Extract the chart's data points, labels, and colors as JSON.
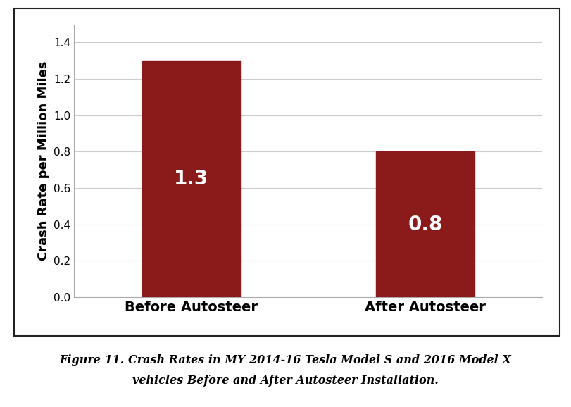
{
  "categories": [
    "Before Autosteer",
    "After Autosteer"
  ],
  "values": [
    1.3,
    0.8
  ],
  "bar_color": "#8B1A1A",
  "bar_labels": [
    "1.3",
    "0.8"
  ],
  "bar_label_color": "#ffffff",
  "bar_label_fontsize": 20,
  "ylabel": "Crash Rate per Million Miles",
  "ylabel_fontsize": 13,
  "xtick_fontsize": 14,
  "ytick_fontsize": 11,
  "ylim": [
    0,
    1.5
  ],
  "ytick_major": 0.2,
  "grid_color": "#cccccc",
  "grid_linewidth": 0.8,
  "plot_background": "#ffffff",
  "outer_background": "#ffffff",
  "caption_line1": "Figure 11. Crash Rates in MY 2014-16 Tesla Model S and 2016 Model X",
  "caption_line2": "vehicles Before and After Autosteer Installation.",
  "caption_fontsize": 11.5,
  "bar_width": 0.42
}
